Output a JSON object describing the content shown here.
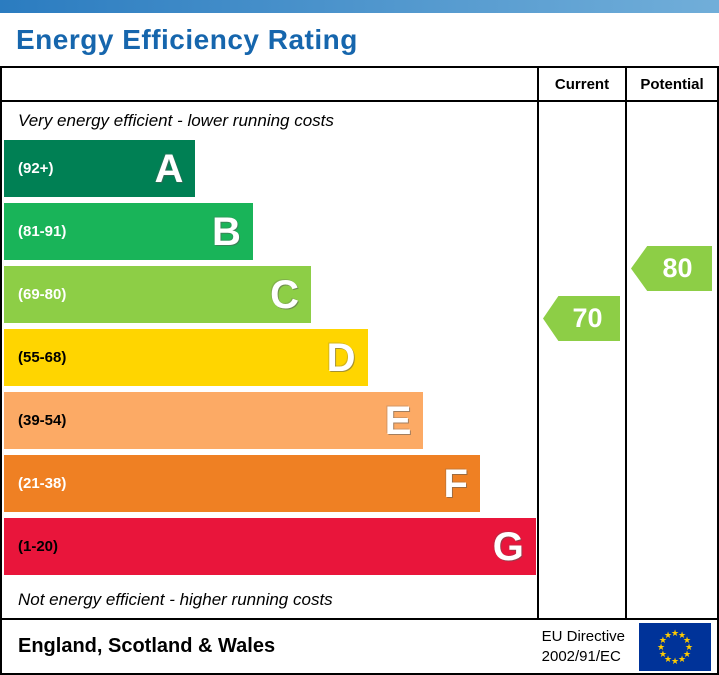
{
  "title": "Energy Efficiency Rating",
  "header": {
    "current_label": "Current",
    "potential_label": "Potential"
  },
  "notes": {
    "top": "Very energy efficient - lower running costs",
    "bottom": "Not energy efficient - higher running costs"
  },
  "bands": [
    {
      "letter": "A",
      "range": "(92+)",
      "color": "#008054",
      "range_text_color": "#ffffff",
      "width_pct": 35.9
    },
    {
      "letter": "B",
      "range": "(81-91)",
      "color": "#19b459",
      "range_text_color": "#ffffff",
      "width_pct": 46.7
    },
    {
      "letter": "C",
      "range": "(69-80)",
      "color": "#8dce46",
      "range_text_color": "#ffffff",
      "width_pct": 57.6
    },
    {
      "letter": "D",
      "range": "(55-68)",
      "color": "#ffd500",
      "range_text_color": "#000000",
      "width_pct": 68.2
    },
    {
      "letter": "E",
      "range": "(39-54)",
      "color": "#fcaa65",
      "range_text_color": "#000000",
      "width_pct": 78.7
    },
    {
      "letter": "F",
      "range": "(21-38)",
      "color": "#ef8023",
      "range_text_color": "#ffffff",
      "width_pct": 89.3
    },
    {
      "letter": "G",
      "range": "(1-20)",
      "color": "#e9153b",
      "range_text_color": "#000000",
      "width_pct": 99.8
    }
  ],
  "current": {
    "value": "70",
    "color": "#8dce46"
  },
  "potential": {
    "value": "80",
    "color": "#8dce46"
  },
  "footer": {
    "region": "England, Scotland & Wales",
    "directive_line1": "EU Directive",
    "directive_line2": "2002/91/EC"
  },
  "chart_data": {
    "type": "bar",
    "title": "Energy Efficiency Rating",
    "categories": [
      "A",
      "B",
      "C",
      "D",
      "E",
      "F",
      "G"
    ],
    "ranges": [
      "92+",
      "81-91",
      "69-80",
      "55-68",
      "39-54",
      "21-38",
      "1-20"
    ],
    "colors": [
      "#008054",
      "#19b459",
      "#8dce46",
      "#ffd500",
      "#fcaa65",
      "#ef8023",
      "#e9153b"
    ],
    "series": [
      {
        "name": "Current",
        "value": 70,
        "band": "C"
      },
      {
        "name": "Potential",
        "value": 80,
        "band": "C"
      }
    ],
    "annotations": [
      "Very energy efficient - lower running costs",
      "Not energy efficient - higher running costs"
    ],
    "region_label": "England, Scotland & Wales",
    "directive": "EU Directive 2002/91/EC"
  }
}
